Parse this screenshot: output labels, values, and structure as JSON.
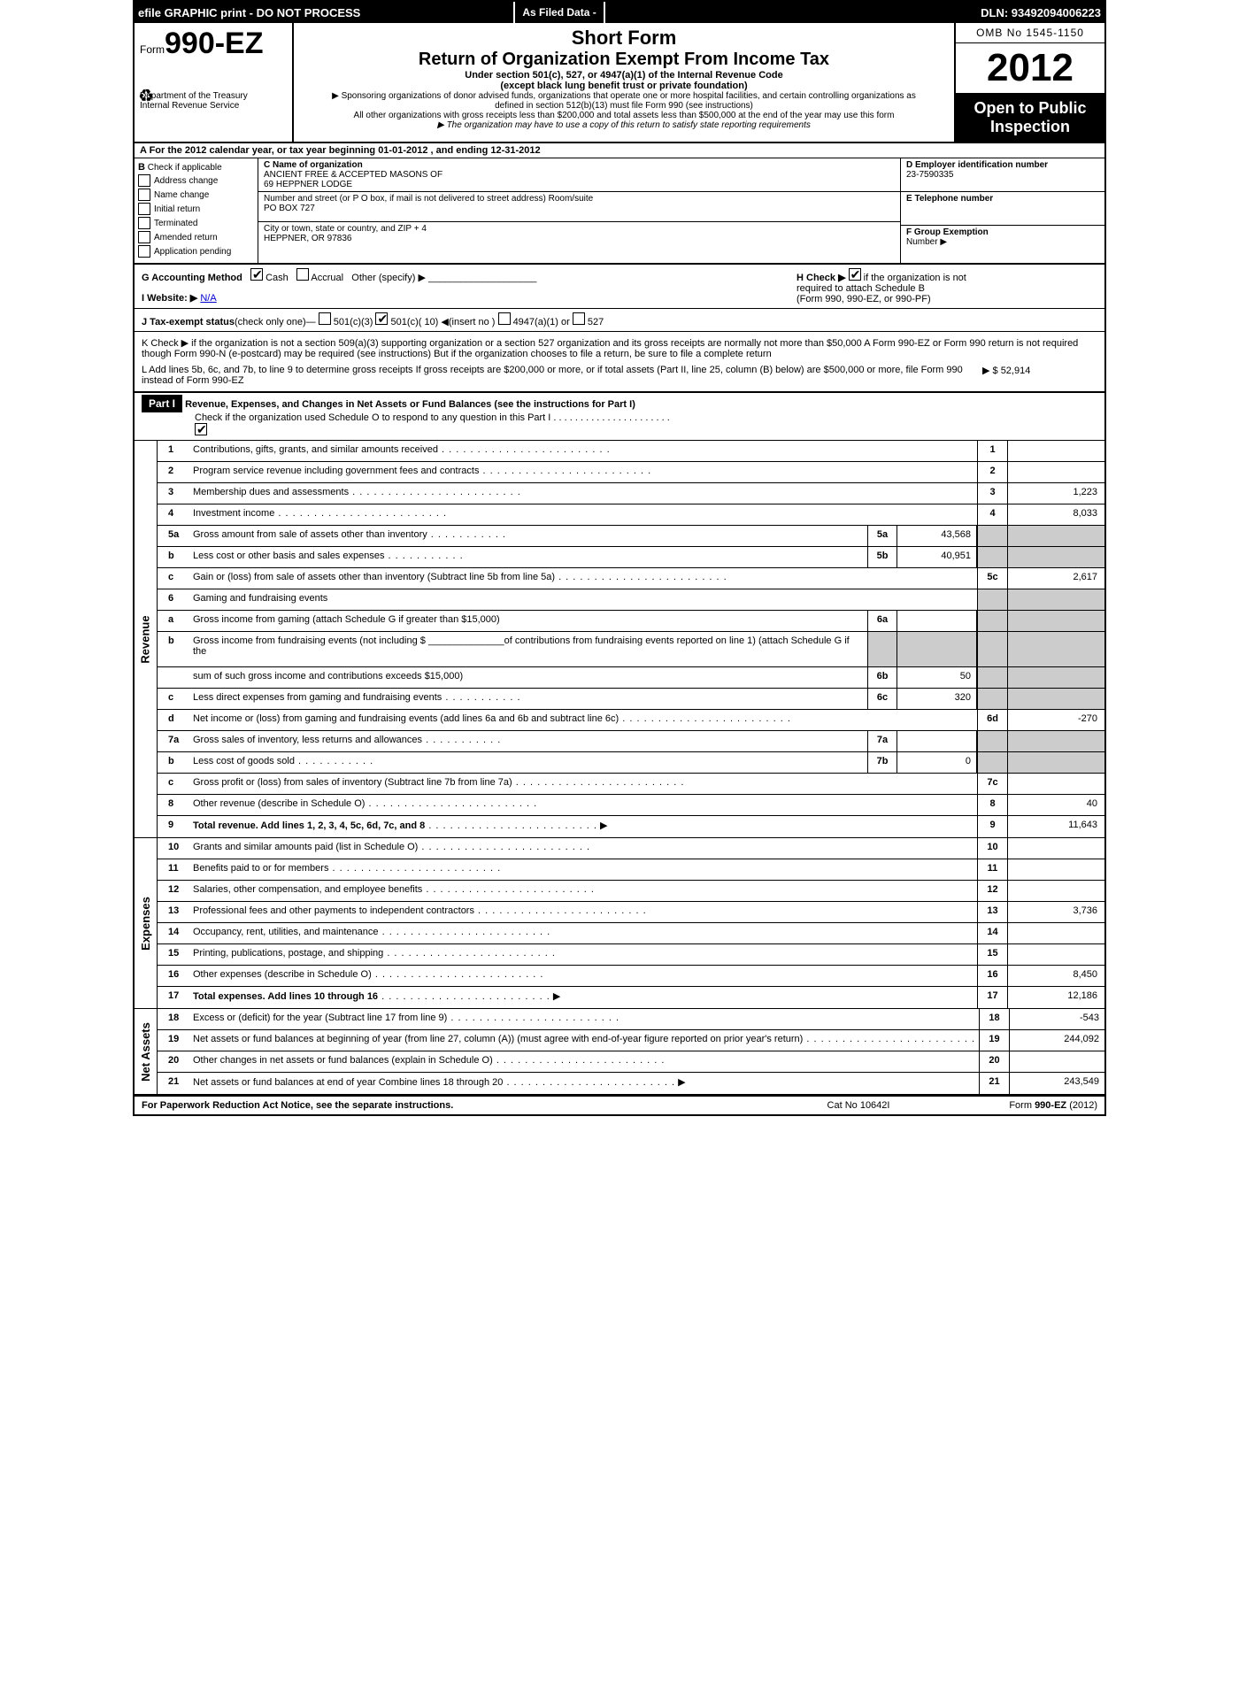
{
  "topbar": {
    "left": "efile GRAPHIC print - DO NOT PROCESS",
    "mid": "As Filed Data -",
    "dln": "DLN: 93492094006223"
  },
  "hdr": {
    "form_prefix": "Form",
    "form_no": "990-EZ",
    "dept": "Department of the Treasury",
    "irs": "Internal Revenue Service",
    "short": "Short Form",
    "title": "Return of Organization Exempt From Income Tax",
    "sub1": "Under section 501(c), 527, or 4947(a)(1) of the Internal Revenue Code",
    "sub2": "(except black lung benefit trust or private foundation)",
    "small1": "▶ Sponsoring organizations of donor advised funds, organizations that operate one or more hospital facilities, and certain controlling organizations as defined in section 512(b)(13) must file Form 990 (see instructions)",
    "small2": "All other organizations with gross receipts less than $200,000 and total assets less than $500,000 at the end of the year may use this form",
    "small3": "▶ The organization may have to use a copy of this return to satisfy state reporting requirements",
    "omb": "OMB No 1545-1150",
    "year": "2012",
    "open1": "Open to Public",
    "open2": "Inspection"
  },
  "A": {
    "text": "A  For the 2012 calendar year, or tax year beginning 01-01-2012           , and ending 12-31-2012"
  },
  "B": {
    "title": "B",
    "subtitle": "Check if applicable",
    "opts": [
      "Address change",
      "Name change",
      "Initial return",
      "Terminated",
      "Amended return",
      "Application pending"
    ]
  },
  "C": {
    "name_lbl": "C Name of organization",
    "name1": "ANCIENT FREE & ACCEPTED MASONS OF",
    "name2": "69 HEPPNER LODGE",
    "addr_lbl": "Number and street (or P O box, if mail is not delivered to street address) Room/suite",
    "addr": "PO BOX 727",
    "city_lbl": "City or town, state or country, and ZIP + 4",
    "city": "HEPPNER, OR  97836"
  },
  "D": {
    "lbl": "D Employer identification number",
    "val": "23-7590335"
  },
  "E": {
    "lbl": "E Telephone number",
    "val": ""
  },
  "F": {
    "lbl": "F Group Exemption",
    "lbl2": "Number        ▶",
    "val": ""
  },
  "G": {
    "lbl": "G Accounting Method",
    "cash": "Cash",
    "accr": "Accrual",
    "other": "Other (specify) ▶"
  },
  "H": {
    "text1": "H  Check ▶",
    "text2": "if the organization is not",
    "text3": "required to attach Schedule B",
    "text4": "(Form 990, 990-EZ, or 990-PF)"
  },
  "I": {
    "lbl": "I Website: ▶",
    "val": "N/A"
  },
  "J": {
    "lbl": "J Tax-exempt status",
    "rest": "(check only one)—",
    "o1": "501(c)(3)",
    "o2": "501(c)( 10) ◀(insert no )",
    "o3": "4947(a)(1) or",
    "o4": "527"
  },
  "K": {
    "text": "K Check ▶       if the organization is not a section 509(a)(3) supporting organization or a section 527 organization and its gross receipts are normally not more than $50,000  A Form 990-EZ or Form 990 return is not required though Form 990-N (e-postcard) may be required (see instructions)  But if the organization chooses to file a return, be sure to file a complete return"
  },
  "L": {
    "text": "L Add lines 5b, 6c, and 7b, to line 9 to determine gross receipts  If gross receipts are $200,000 or more, or if total assets (Part II, line 25, column (B) below) are $500,000 or more, file Form 990 instead of Form 990-EZ",
    "amt": "▶ $ 52,914"
  },
  "partI": {
    "hdr": "Part I",
    "title": "Revenue, Expenses, and Changes in Net Assets or Fund Balances (see the instructions for Part I)",
    "sub": "Check if the organization used Schedule O to respond to any question in this Part I  .  .  .  .  .  .  .  .  .  .  .  .  .  .  .  .  .  .  .  .  .  ."
  },
  "rev": [
    {
      "n": "1",
      "t": "Contributions, gifts, grants, and similar amounts received",
      "rn": "1",
      "rv": ""
    },
    {
      "n": "2",
      "t": "Program service revenue including government fees and contracts",
      "rn": "2",
      "rv": ""
    },
    {
      "n": "3",
      "t": "Membership dues and assessments",
      "rn": "3",
      "rv": "1,223"
    },
    {
      "n": "4",
      "t": "Investment income",
      "rn": "4",
      "rv": "8,033"
    }
  ],
  "l5a": {
    "n": "5a",
    "t": "Gross amount from sale of assets other than inventory",
    "sn": "5a",
    "sv": "43,568"
  },
  "l5b": {
    "n": "b",
    "t": "Less  cost or other basis and sales expenses",
    "sn": "5b",
    "sv": "40,951"
  },
  "l5c": {
    "n": "c",
    "t": "Gain or (loss) from sale of assets other than inventory (Subtract line 5b from line 5a)",
    "rn": "5c",
    "rv": "2,617"
  },
  "l6": {
    "n": "6",
    "t": "Gaming and fundraising events"
  },
  "l6a": {
    "n": "a",
    "t": "Gross income from gaming (attach Schedule G if greater than $15,000)",
    "sn": "6a",
    "sv": ""
  },
  "l6b": {
    "n": "b",
    "t1": "Gross income from fundraising events (not including $ ______________of contributions from fundraising events reported on line 1) (attach Schedule G if the",
    "t2": "sum of such gross income and contributions exceeds $15,000)",
    "sn": "6b",
    "sv": "50"
  },
  "l6c": {
    "n": "c",
    "t": "Less  direct expenses from gaming and fundraising events",
    "sn": "6c",
    "sv": "320"
  },
  "l6d": {
    "n": "d",
    "t": "Net income or (loss) from gaming and fundraising events (add lines 6a and 6b and subtract line 6c)",
    "rn": "6d",
    "rv": "-270"
  },
  "l7a": {
    "n": "7a",
    "t": "Gross sales of inventory, less returns and allowances",
    "sn": "7a",
    "sv": ""
  },
  "l7b": {
    "n": "b",
    "t": "Less  cost of goods sold",
    "sn": "7b",
    "sv": "0"
  },
  "l7c": {
    "n": "c",
    "t": "Gross profit or (loss) from sales of inventory (Subtract line 7b from line 7a)",
    "rn": "7c",
    "rv": ""
  },
  "l8": {
    "n": "8",
    "t": "Other revenue (describe in Schedule O)",
    "rn": "8",
    "rv": "40"
  },
  "l9": {
    "n": "9",
    "t": "Total revenue. Add lines 1, 2, 3, 4, 5c, 6d, 7c, and 8",
    "rn": "9",
    "rv": "11,643"
  },
  "exp": [
    {
      "n": "10",
      "t": "Grants and similar amounts paid (list in Schedule O)",
      "rn": "10",
      "rv": ""
    },
    {
      "n": "11",
      "t": "Benefits paid to or for members",
      "rn": "11",
      "rv": ""
    },
    {
      "n": "12",
      "t": "Salaries, other compensation, and employee benefits",
      "rn": "12",
      "rv": ""
    },
    {
      "n": "13",
      "t": "Professional fees and other payments to independent contractors",
      "rn": "13",
      "rv": "3,736"
    },
    {
      "n": "14",
      "t": "Occupancy, rent, utilities, and maintenance",
      "rn": "14",
      "rv": ""
    },
    {
      "n": "15",
      "t": "Printing, publications, postage, and shipping",
      "rn": "15",
      "rv": ""
    },
    {
      "n": "16",
      "t": "Other expenses (describe in Schedule O)",
      "rn": "16",
      "rv": "8,450"
    },
    {
      "n": "17",
      "t": "Total expenses. Add lines 10 through 16",
      "rn": "17",
      "rv": "12,186"
    }
  ],
  "na": [
    {
      "n": "18",
      "t": "Excess or (deficit) for the year (Subtract line 17 from line 9)",
      "rn": "18",
      "rv": "-543"
    },
    {
      "n": "19",
      "t": "Net assets or fund balances at beginning of year (from line 27, column (A)) (must agree with end-of-year figure reported on prior year's return)",
      "rn": "19",
      "rv": "244,092"
    },
    {
      "n": "20",
      "t": "Other changes in net assets or fund balances (explain in Schedule O)",
      "rn": "20",
      "rv": ""
    },
    {
      "n": "21",
      "t": "Net assets or fund balances at end of year  Combine lines 18 through 20",
      "rn": "21",
      "rv": "243,549"
    }
  ],
  "sides": {
    "rev": "Revenue",
    "exp": "Expenses",
    "na": "Net Assets"
  },
  "footer": {
    "l": "For Paperwork Reduction Act Notice, see the separate instructions.",
    "m": "Cat No 10642I",
    "r": "Form 990-EZ (2012)"
  }
}
